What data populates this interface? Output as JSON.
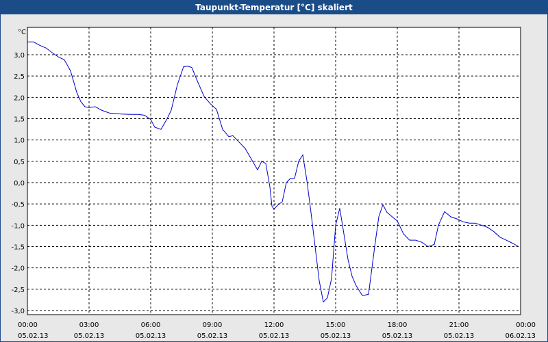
{
  "window": {
    "title": "Taupunkt-Temperatur [°C] skaliert"
  },
  "colors": {
    "title_bar": "#1a4c88",
    "plot_bg": "#ffffff",
    "line": "#0000cc",
    "grid": "#000000"
  },
  "chart_data": {
    "type": "line",
    "title": "Taupunkt-Temperatur [°C] skaliert",
    "ylabel": "°C",
    "ylim": [
      -3.0,
      3.3
    ],
    "yticks": [
      3.0,
      2.5,
      2.0,
      1.5,
      1.0,
      0.5,
      0.0,
      -0.5,
      -1.0,
      -1.5,
      -2.0,
      -2.5,
      -3.0
    ],
    "ytick_labels": [
      "3,0",
      "2,5",
      "2,0",
      "1,5",
      "1,0",
      "0,5",
      "0,0",
      "-0,5",
      "-1,0",
      "-1,5",
      "-2,0",
      "-2,5",
      "-3,0"
    ],
    "xlim_hours": [
      0,
      24
    ],
    "xticks": [
      {
        "hour": 0,
        "time": "00:00",
        "date": "05.02.13"
      },
      {
        "hour": 3,
        "time": "03:00",
        "date": "05.02.13"
      },
      {
        "hour": 6,
        "time": "06:00",
        "date": "05.02.13"
      },
      {
        "hour": 9,
        "time": "09:00",
        "date": "05.02.13"
      },
      {
        "hour": 12,
        "time": "12:00",
        "date": "05.02.13"
      },
      {
        "hour": 15,
        "time": "15:00",
        "date": "05.02.13"
      },
      {
        "hour": 18,
        "time": "18:00",
        "date": "05.02.13"
      },
      {
        "hour": 21,
        "time": "21:00",
        "date": "05.02.13"
      },
      {
        "hour": 24,
        "time": "00:00",
        "date": "06.02.13"
      }
    ],
    "grid": true,
    "series": [
      {
        "x": [
          0.0,
          0.3,
          0.6,
          0.9,
          1.2,
          1.5,
          1.8,
          2.1,
          2.4,
          2.6,
          2.8,
          3.0,
          3.3,
          3.6,
          4.0,
          4.5,
          5.0,
          5.4,
          5.7,
          6.0,
          6.2,
          6.5,
          6.8,
          7.0,
          7.3,
          7.6,
          7.8,
          8.0,
          8.3,
          8.6,
          8.9,
          9.2,
          9.5,
          9.8,
          10.0,
          10.3,
          10.6,
          10.9,
          11.2,
          11.4,
          11.6,
          11.8,
          11.9,
          12.0,
          12.2,
          12.4,
          12.6,
          12.8,
          13.0,
          13.2,
          13.4,
          13.6,
          13.8,
          14.0,
          14.2,
          14.4,
          14.6,
          14.8,
          15.0,
          15.2,
          15.4,
          15.6,
          15.8,
          16.0,
          16.3,
          16.6,
          16.9,
          17.1,
          17.3,
          17.5,
          17.7,
          18.0,
          18.3,
          18.6,
          18.9,
          19.2,
          19.5,
          19.8,
          20.0,
          20.3,
          20.6,
          20.9,
          21.2,
          21.5,
          21.8,
          22.1,
          22.4,
          22.7,
          23.0,
          23.3,
          23.6,
          23.9
        ],
        "y": [
          3.3,
          3.3,
          3.22,
          3.16,
          3.05,
          2.95,
          2.88,
          2.62,
          2.12,
          1.9,
          1.78,
          1.76,
          1.78,
          1.7,
          1.63,
          1.61,
          1.6,
          1.6,
          1.58,
          1.48,
          1.3,
          1.25,
          1.5,
          1.7,
          2.3,
          2.72,
          2.73,
          2.7,
          2.35,
          2.02,
          1.85,
          1.72,
          1.25,
          1.08,
          1.1,
          0.95,
          0.8,
          0.55,
          0.3,
          0.5,
          0.45,
          -0.1,
          -0.55,
          -0.62,
          -0.52,
          -0.45,
          0.0,
          0.1,
          0.1,
          0.5,
          0.65,
          0.05,
          -0.7,
          -1.5,
          -2.3,
          -2.8,
          -2.7,
          -2.25,
          -1.0,
          -0.6,
          -1.2,
          -1.8,
          -2.2,
          -2.42,
          -2.65,
          -2.62,
          -1.5,
          -0.8,
          -0.52,
          -0.7,
          -0.78,
          -0.9,
          -1.2,
          -1.35,
          -1.35,
          -1.4,
          -1.5,
          -1.45,
          -1.0,
          -0.68,
          -0.8,
          -0.85,
          -0.92,
          -0.95,
          -0.95,
          -1.0,
          -1.05,
          -1.15,
          -1.28,
          -1.35,
          -1.42,
          -1.5
        ]
      }
    ]
  }
}
